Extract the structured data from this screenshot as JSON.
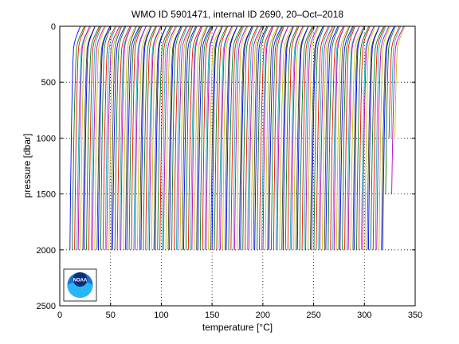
{
  "chart_data": {
    "type": "line",
    "title": "WMO ID 5901471, internal ID 2690, 20–Oct–2018",
    "xlabel": "temperature [°C]",
    "ylabel": "pressure [dbar]",
    "xlim": [
      0,
      350
    ],
    "ylim": [
      0,
      2500
    ],
    "y_reversed": true,
    "grid": "dotted",
    "xticks": [
      "0",
      "50",
      "100",
      "150",
      "200",
      "250",
      "300",
      "350"
    ],
    "yticks": [
      "0",
      "500",
      "1000",
      "1500",
      "2000",
      "2500"
    ],
    "profile_count": 160,
    "profile_offset_step": 2,
    "profile_shape": {
      "pressure": [
        0,
        50,
        100,
        150,
        200,
        300,
        400,
        500,
        700,
        1000,
        1500,
        2000
      ],
      "temperature": [
        12,
        9.5,
        7,
        5.2,
        4.2,
        3.6,
        3.2,
        2.9,
        2.3,
        1.6,
        0.7,
        0
      ]
    },
    "logo": "noaa-logo"
  }
}
